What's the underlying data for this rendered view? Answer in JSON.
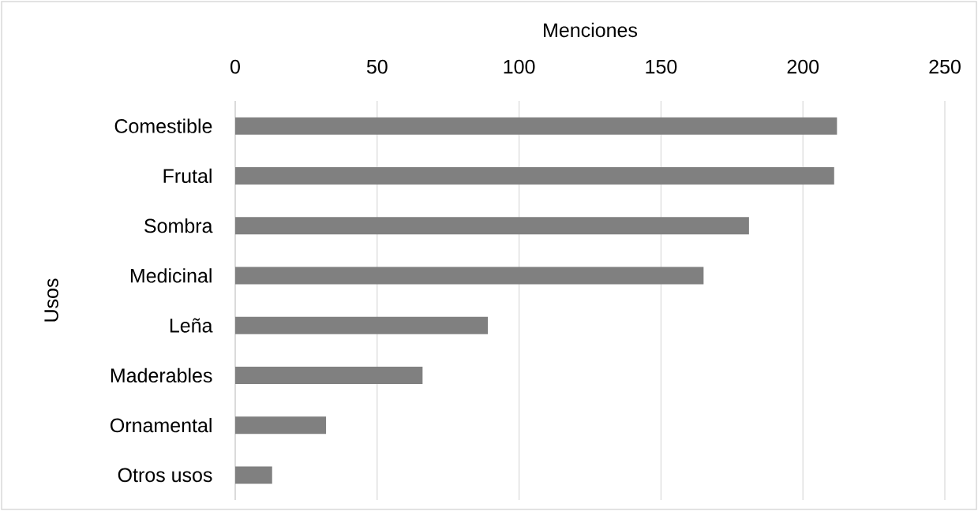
{
  "chart_data": {
    "type": "bar",
    "orientation": "horizontal",
    "xlabel": "Menciones",
    "ylabel": "Usos",
    "categories": [
      "Comestible",
      "Frutal",
      "Sombra",
      "Medicinal",
      "Leña",
      "Maderables",
      "Ornamental",
      "Otros usos"
    ],
    "values": [
      212,
      211,
      181,
      165,
      89,
      66,
      32,
      13
    ],
    "color": "#808080",
    "xlim": [
      0,
      250
    ],
    "xticks": [
      0,
      50,
      100,
      150,
      200,
      250
    ],
    "grid": "x"
  }
}
